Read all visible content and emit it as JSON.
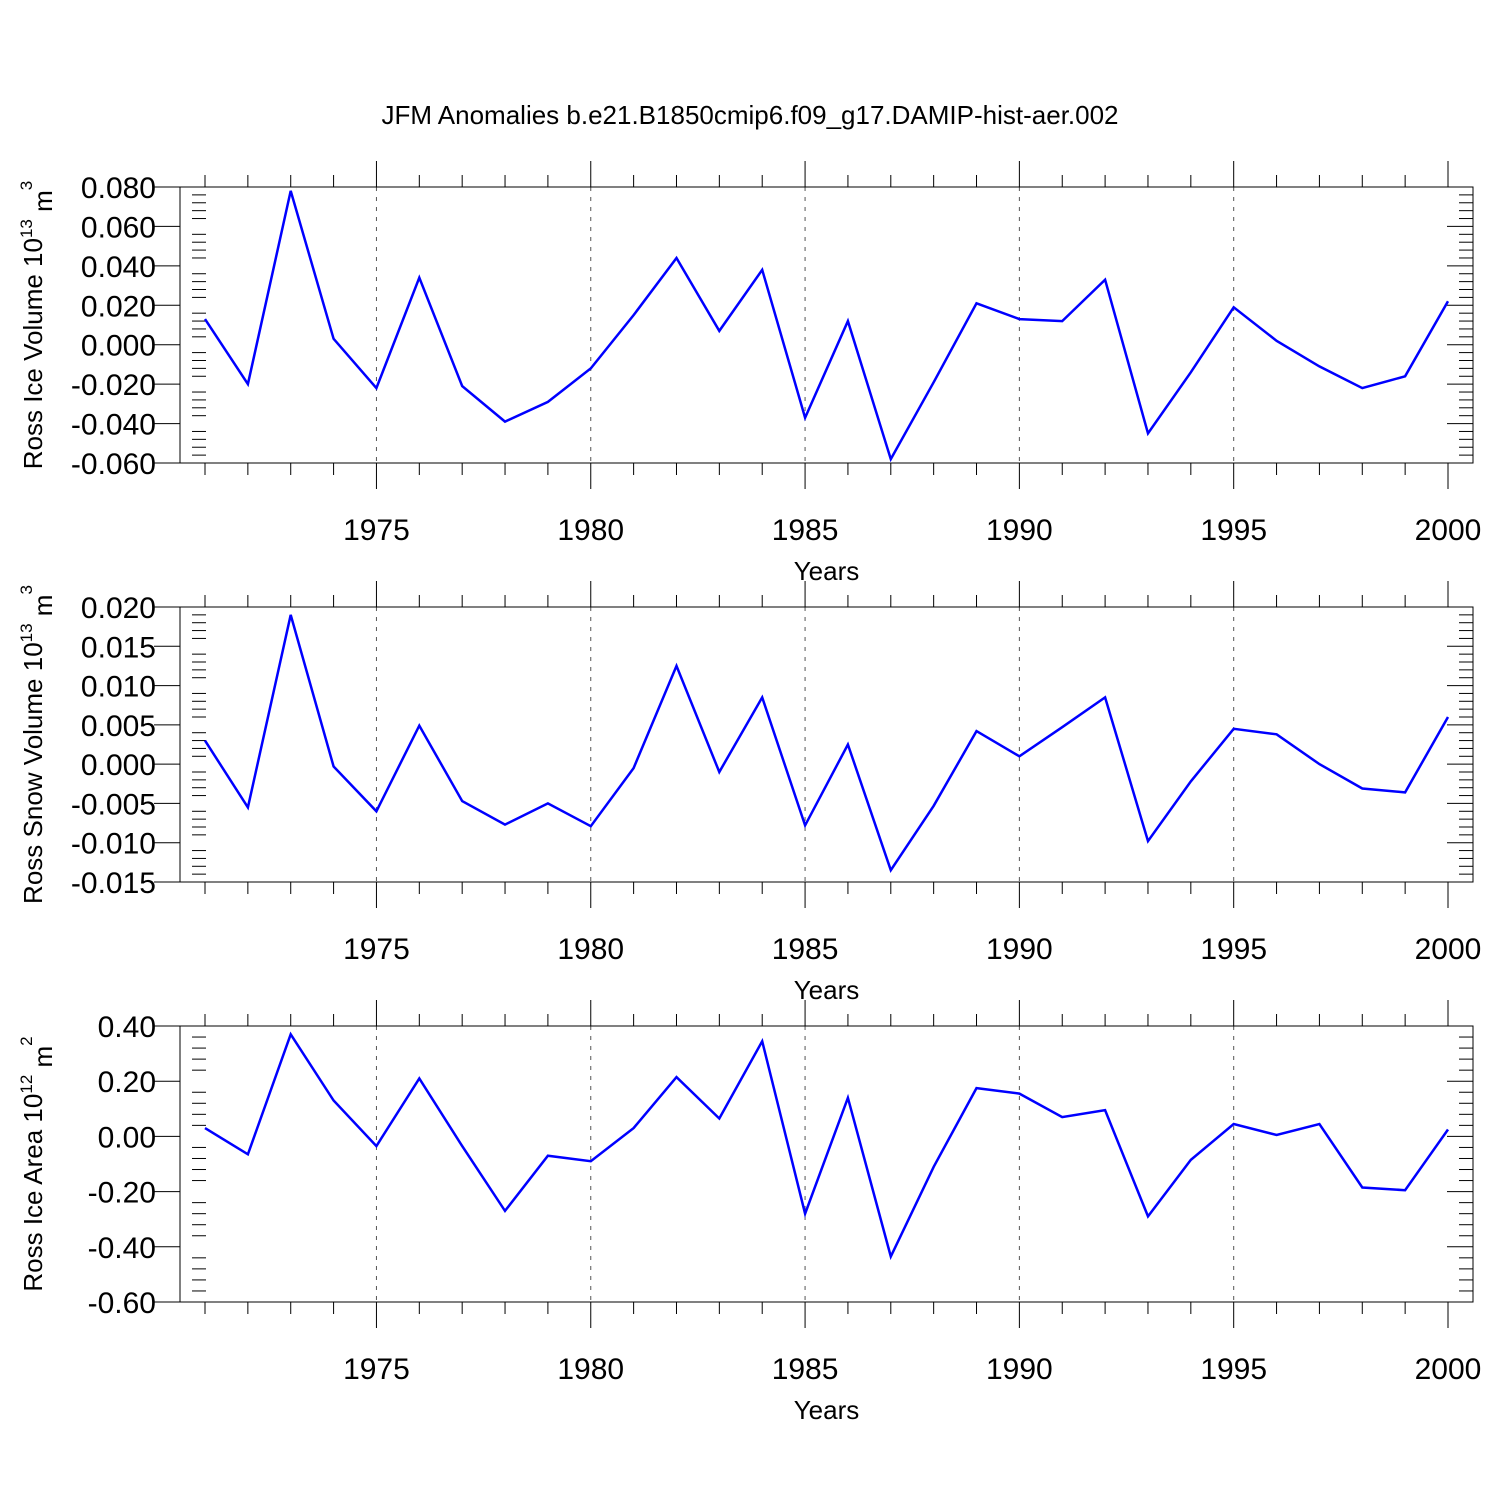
{
  "title": "JFM Anomalies b.e21.B1850cmip6.f09_g17.DAMIP-hist-aer.002",
  "colors": {
    "line": "#0000ff",
    "axis": "#000000",
    "grid": "#555555",
    "background": "#ffffff"
  },
  "chart_data": [
    {
      "type": "line",
      "ylabel": "Ross Ice Volume 10",
      "ylabel_exp": "13",
      "ylabel_unit": " m",
      "ylabel_unit_exp": "3",
      "xlabel": "Years",
      "xlim": [
        1971,
        2000
      ],
      "ylim": [
        -0.06,
        0.08
      ],
      "yticks": [
        -0.06,
        -0.04,
        -0.02,
        0.0,
        0.02,
        0.04,
        0.06,
        0.08
      ],
      "ytick_labels": [
        "-0.060",
        "-0.040",
        "-0.020",
        "0.000",
        "0.020",
        "0.040",
        "0.060",
        "0.080"
      ],
      "xticks": [
        1975,
        1980,
        1985,
        1990,
        1995,
        2000
      ],
      "xtick_labels": [
        "1975",
        "1980",
        "1985",
        "1990",
        "1995",
        "2000"
      ],
      "grid": "vertical dashed at major x ticks",
      "series": [
        {
          "x": [
            1971,
            1972,
            1973,
            1974,
            1975,
            1976,
            1977,
            1978,
            1979,
            1980,
            1981,
            1982,
            1983,
            1984,
            1985,
            1986,
            1987,
            1988,
            1989,
            1990,
            1991,
            1992,
            1993,
            1994,
            1995,
            1996,
            1997,
            1998,
            1999,
            2000
          ],
          "values": [
            0.013,
            -0.02,
            0.078,
            0.003,
            -0.022,
            0.034,
            -0.021,
            -0.039,
            -0.029,
            -0.012,
            0.015,
            0.044,
            0.007,
            0.038,
            -0.037,
            0.012,
            -0.058,
            -0.019,
            0.021,
            0.013,
            0.012,
            0.033,
            -0.045,
            -0.014,
            0.019,
            0.002,
            -0.011,
            -0.022,
            -0.016,
            0.022
          ]
        }
      ]
    },
    {
      "type": "line",
      "ylabel": "Ross Snow Volume 10",
      "ylabel_exp": "13",
      "ylabel_unit": " m",
      "ylabel_unit_exp": "3",
      "xlabel": "Years",
      "xlim": [
        1971,
        2000
      ],
      "ylim": [
        -0.015,
        0.02
      ],
      "yticks": [
        -0.015,
        -0.01,
        -0.005,
        0.0,
        0.005,
        0.01,
        0.015,
        0.02
      ],
      "ytick_labels": [
        "-0.015",
        "-0.010",
        "-0.005",
        "0.000",
        "0.005",
        "0.010",
        "0.015",
        "0.020"
      ],
      "xticks": [
        1975,
        1980,
        1985,
        1990,
        1995,
        2000
      ],
      "xtick_labels": [
        "1975",
        "1980",
        "1985",
        "1990",
        "1995",
        "2000"
      ],
      "grid": "vertical dashed at major x ticks",
      "series": [
        {
          "x": [
            1971,
            1972,
            1973,
            1974,
            1975,
            1976,
            1977,
            1978,
            1979,
            1980,
            1981,
            1982,
            1983,
            1984,
            1985,
            1986,
            1987,
            1988,
            1989,
            1990,
            1991,
            1992,
            1993,
            1994,
            1995,
            1996,
            1997,
            1998,
            1999,
            2000
          ],
          "values": [
            0.003,
            -0.0055,
            0.019,
            -0.0003,
            -0.006,
            0.0049,
            -0.0047,
            -0.0077,
            -0.005,
            -0.0079,
            -0.0005,
            0.0125,
            -0.001,
            0.0085,
            -0.0078,
            0.0025,
            -0.0135,
            -0.0053,
            0.0042,
            0.001,
            0.0047,
            0.0085,
            -0.0098,
            -0.0022,
            0.0045,
            0.0038,
            0.0,
            -0.0031,
            -0.0036,
            0.006
          ]
        }
      ]
    },
    {
      "type": "line",
      "ylabel": "Ross Ice Area 10",
      "ylabel_exp": "12",
      "ylabel_unit": " m",
      "ylabel_unit_exp": "2",
      "xlabel": "Years",
      "xlim": [
        1971,
        2000
      ],
      "ylim": [
        -0.6,
        0.4
      ],
      "yticks": [
        -0.6,
        -0.4,
        -0.2,
        0.0,
        0.2,
        0.4
      ],
      "ytick_labels": [
        "-0.60",
        "-0.40",
        "-0.20",
        "0.00",
        "0.20",
        "0.40"
      ],
      "xticks": [
        1975,
        1980,
        1985,
        1990,
        1995,
        2000
      ],
      "xtick_labels": [
        "1975",
        "1980",
        "1985",
        "1990",
        "1995",
        "2000"
      ],
      "grid": "vertical dashed at major x ticks",
      "series": [
        {
          "x": [
            1971,
            1972,
            1973,
            1974,
            1975,
            1976,
            1977,
            1978,
            1979,
            1980,
            1981,
            1982,
            1983,
            1984,
            1985,
            1986,
            1987,
            1988,
            1989,
            1990,
            1991,
            1992,
            1993,
            1994,
            1995,
            1996,
            1997,
            1998,
            1999,
            2000
          ],
          "values": [
            0.03,
            -0.065,
            0.37,
            0.13,
            -0.035,
            0.21,
            -0.035,
            -0.27,
            -0.07,
            -0.09,
            0.03,
            0.215,
            0.065,
            0.345,
            -0.28,
            0.14,
            -0.435,
            -0.11,
            0.175,
            0.155,
            0.07,
            0.095,
            -0.29,
            -0.085,
            0.045,
            0.005,
            0.045,
            -0.185,
            -0.195,
            0.025
          ]
        }
      ]
    }
  ]
}
